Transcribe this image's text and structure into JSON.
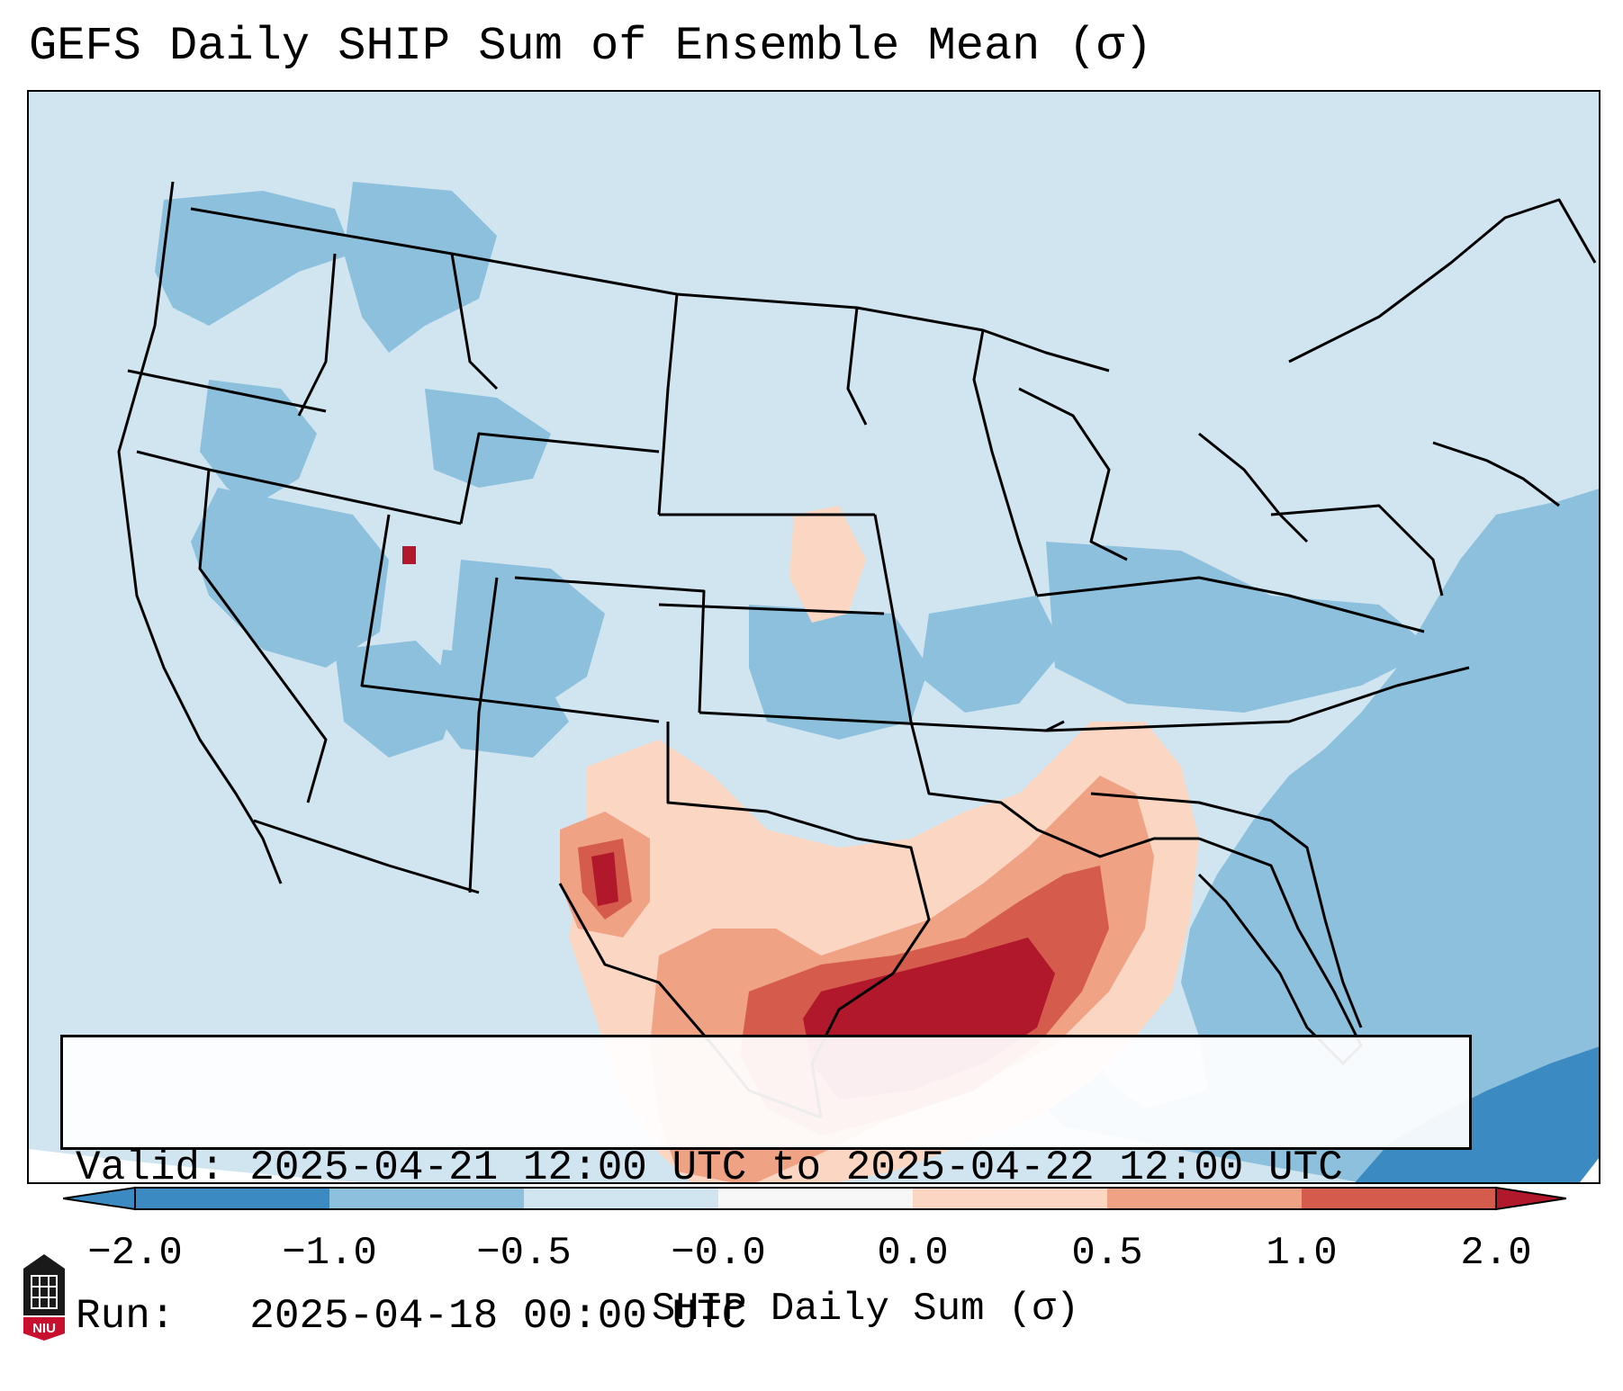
{
  "title": "GEFS Daily SHIP Sum of Ensemble Mean (σ)",
  "info": {
    "valid_line": "Valid: 2025-04-21 12:00 UTC to 2025-04-22 12:00 UTC",
    "run_line": "Run:   2025-04-18 00:00 UTC"
  },
  "colorbar": {
    "label": "SHIP Daily Sum (σ)",
    "ticks": [
      "−2.0",
      "−1.0",
      "−0.5",
      "−0.0",
      "0.0",
      "0.5",
      "1.0",
      "2.0"
    ],
    "colors": [
      "#3b8bc2",
      "#8cc0dd",
      "#d0e5f0",
      "#f7f7f7",
      "#fbd6c3",
      "#f0a285",
      "#d55b4c",
      "#b2182b"
    ],
    "extend": "both"
  },
  "map": {
    "region": "Contiguous United States",
    "field": "SHIP daily sum anomaly, ensemble mean"
  },
  "logo": {
    "text": "NIU",
    "icon": "niu-logo-icon"
  }
}
